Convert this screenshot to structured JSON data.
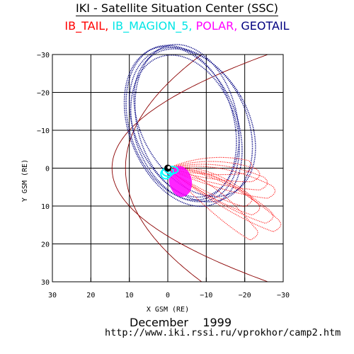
{
  "header": {
    "title": "IKI - Satellite Situation Center (SSC)"
  },
  "footer": {
    "period_month": "December",
    "period_year": "1999",
    "url": "http://www.iki.rssi.ru/vprokhor/camp2.htm"
  },
  "chart_data": {
    "type": "scatter",
    "xlabel": "X GSM (RE)",
    "ylabel": "Y GSM (RE)",
    "xlim": [
      30,
      -30
    ],
    "ylim": [
      -30,
      30
    ],
    "x_ticks": [
      30,
      20,
      10,
      0,
      -10,
      -20,
      -30
    ],
    "y_ticks": [
      -30,
      -20,
      -10,
      0,
      10,
      20,
      30
    ],
    "grid": true,
    "legend_position": "top",
    "series": [
      {
        "name": "IB_TAIL",
        "color": "#ff0000"
      },
      {
        "name": "IB_MAGION_5",
        "color": "#00ffff"
      },
      {
        "name": "POLAR",
        "color": "#ff00ff"
      },
      {
        "name": "GEOTAIL",
        "color": "#000080"
      }
    ],
    "magnetopause_color": "#8b0000",
    "earth_center": [
      0,
      0
    ]
  }
}
